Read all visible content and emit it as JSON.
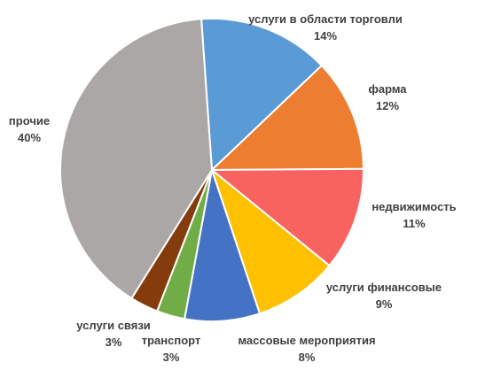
{
  "chart_data": {
    "type": "pie",
    "categories": [
      "услуги в области торговли",
      "фарма",
      "недвижимость",
      "услуги финансовые",
      "массовые мероприятия",
      "транспорт",
      "услуги связи",
      "прочие"
    ],
    "values": [
      14,
      12,
      11,
      9,
      8,
      3,
      3,
      40
    ],
    "value_labels": [
      "14%",
      "12%",
      "11%",
      "9%",
      "8%",
      "3%",
      "3%",
      "40%"
    ],
    "colors": [
      "#5B9BD5",
      "#ED7D31",
      "#F8635F",
      "#FFC000",
      "#4472C4",
      "#70AD47",
      "#843C0C",
      "#ABA7A6"
    ],
    "start_angle_deg": -4,
    "direction": "clockwise",
    "legend": "none",
    "title": ""
  }
}
